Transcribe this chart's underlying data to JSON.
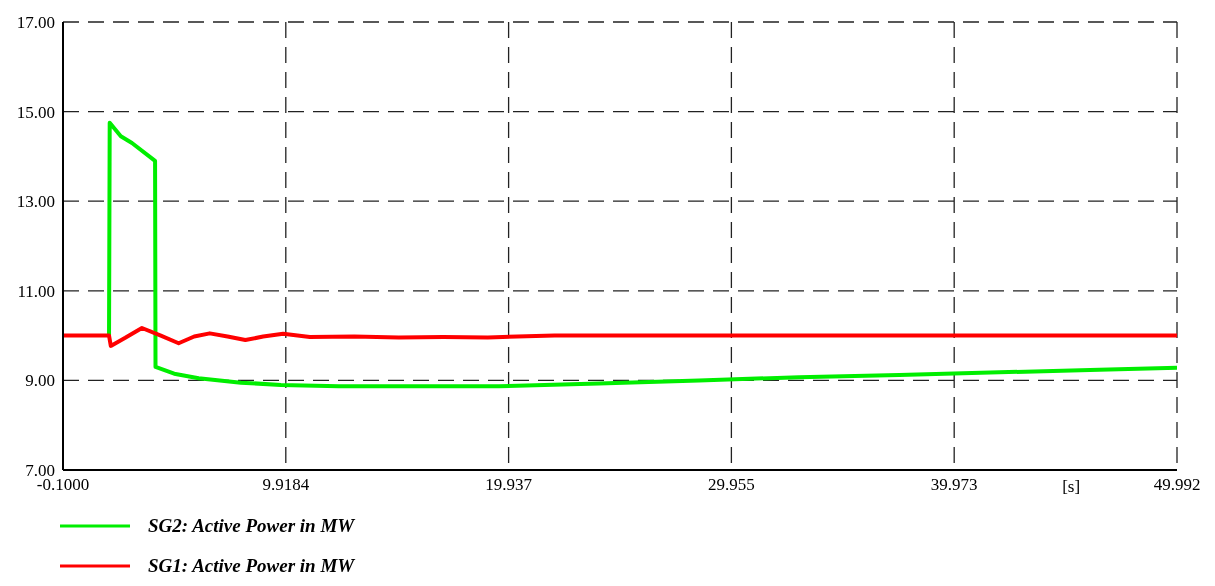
{
  "chart_data": {
    "type": "line",
    "xlabel": "[s]",
    "xlim": [
      -0.1,
      49.992
    ],
    "xticks": [
      {
        "value": -0.1,
        "label": "-0.1000"
      },
      9.9184,
      19.937,
      29.955,
      39.973,
      49.992
    ],
    "ylim": [
      7,
      17
    ],
    "yticks": [
      {
        "value": 7,
        "label": "7.00"
      },
      {
        "value": 9,
        "label": "9.00"
      },
      {
        "value": 11,
        "label": "11.00"
      },
      {
        "value": 13,
        "label": "13.00"
      },
      {
        "value": 15,
        "label": "15.00"
      },
      {
        "value": 17,
        "label": "17.00"
      }
    ],
    "grid": true,
    "legend": "bottom left",
    "line_style": "solid",
    "marker": "none",
    "series": [
      {
        "name": "SG2: Active Power in MW",
        "color": "#00ee00",
        "x": [
          1.97,
          2.0,
          2.5,
          3.0,
          4.04,
          4.06,
          4.9,
          6.0,
          7.9,
          9.7,
          12.3,
          19.5,
          24.0,
          28.5,
          33.0,
          37.5,
          42.0,
          46.5,
          49.992
        ],
        "values": [
          10,
          14.75,
          14.45,
          14.3,
          13.9,
          9.3,
          9.15,
          9.05,
          8.95,
          8.9,
          8.87,
          8.87,
          8.93,
          9.0,
          9.07,
          9.12,
          9.18,
          9.24,
          9.28
        ]
      },
      {
        "name": "SG1: Active Power in MW",
        "color": "#ff0000",
        "x": [
          -0.1,
          1.97,
          2.05,
          2.7,
          3.45,
          4.3,
          5.1,
          5.8,
          6.5,
          7.3,
          8.1,
          8.9,
          9.8,
          11.0,
          13.0,
          15.0,
          17.0,
          19.0,
          22.0,
          30.0,
          40.0,
          49.992
        ],
        "values": [
          10,
          10,
          9.77,
          9.95,
          10.17,
          10.0,
          9.83,
          9.98,
          10.05,
          9.98,
          9.9,
          9.98,
          10.04,
          9.97,
          9.98,
          9.96,
          9.97,
          9.96,
          10.0,
          10.0,
          10.0,
          10.0
        ]
      }
    ]
  }
}
